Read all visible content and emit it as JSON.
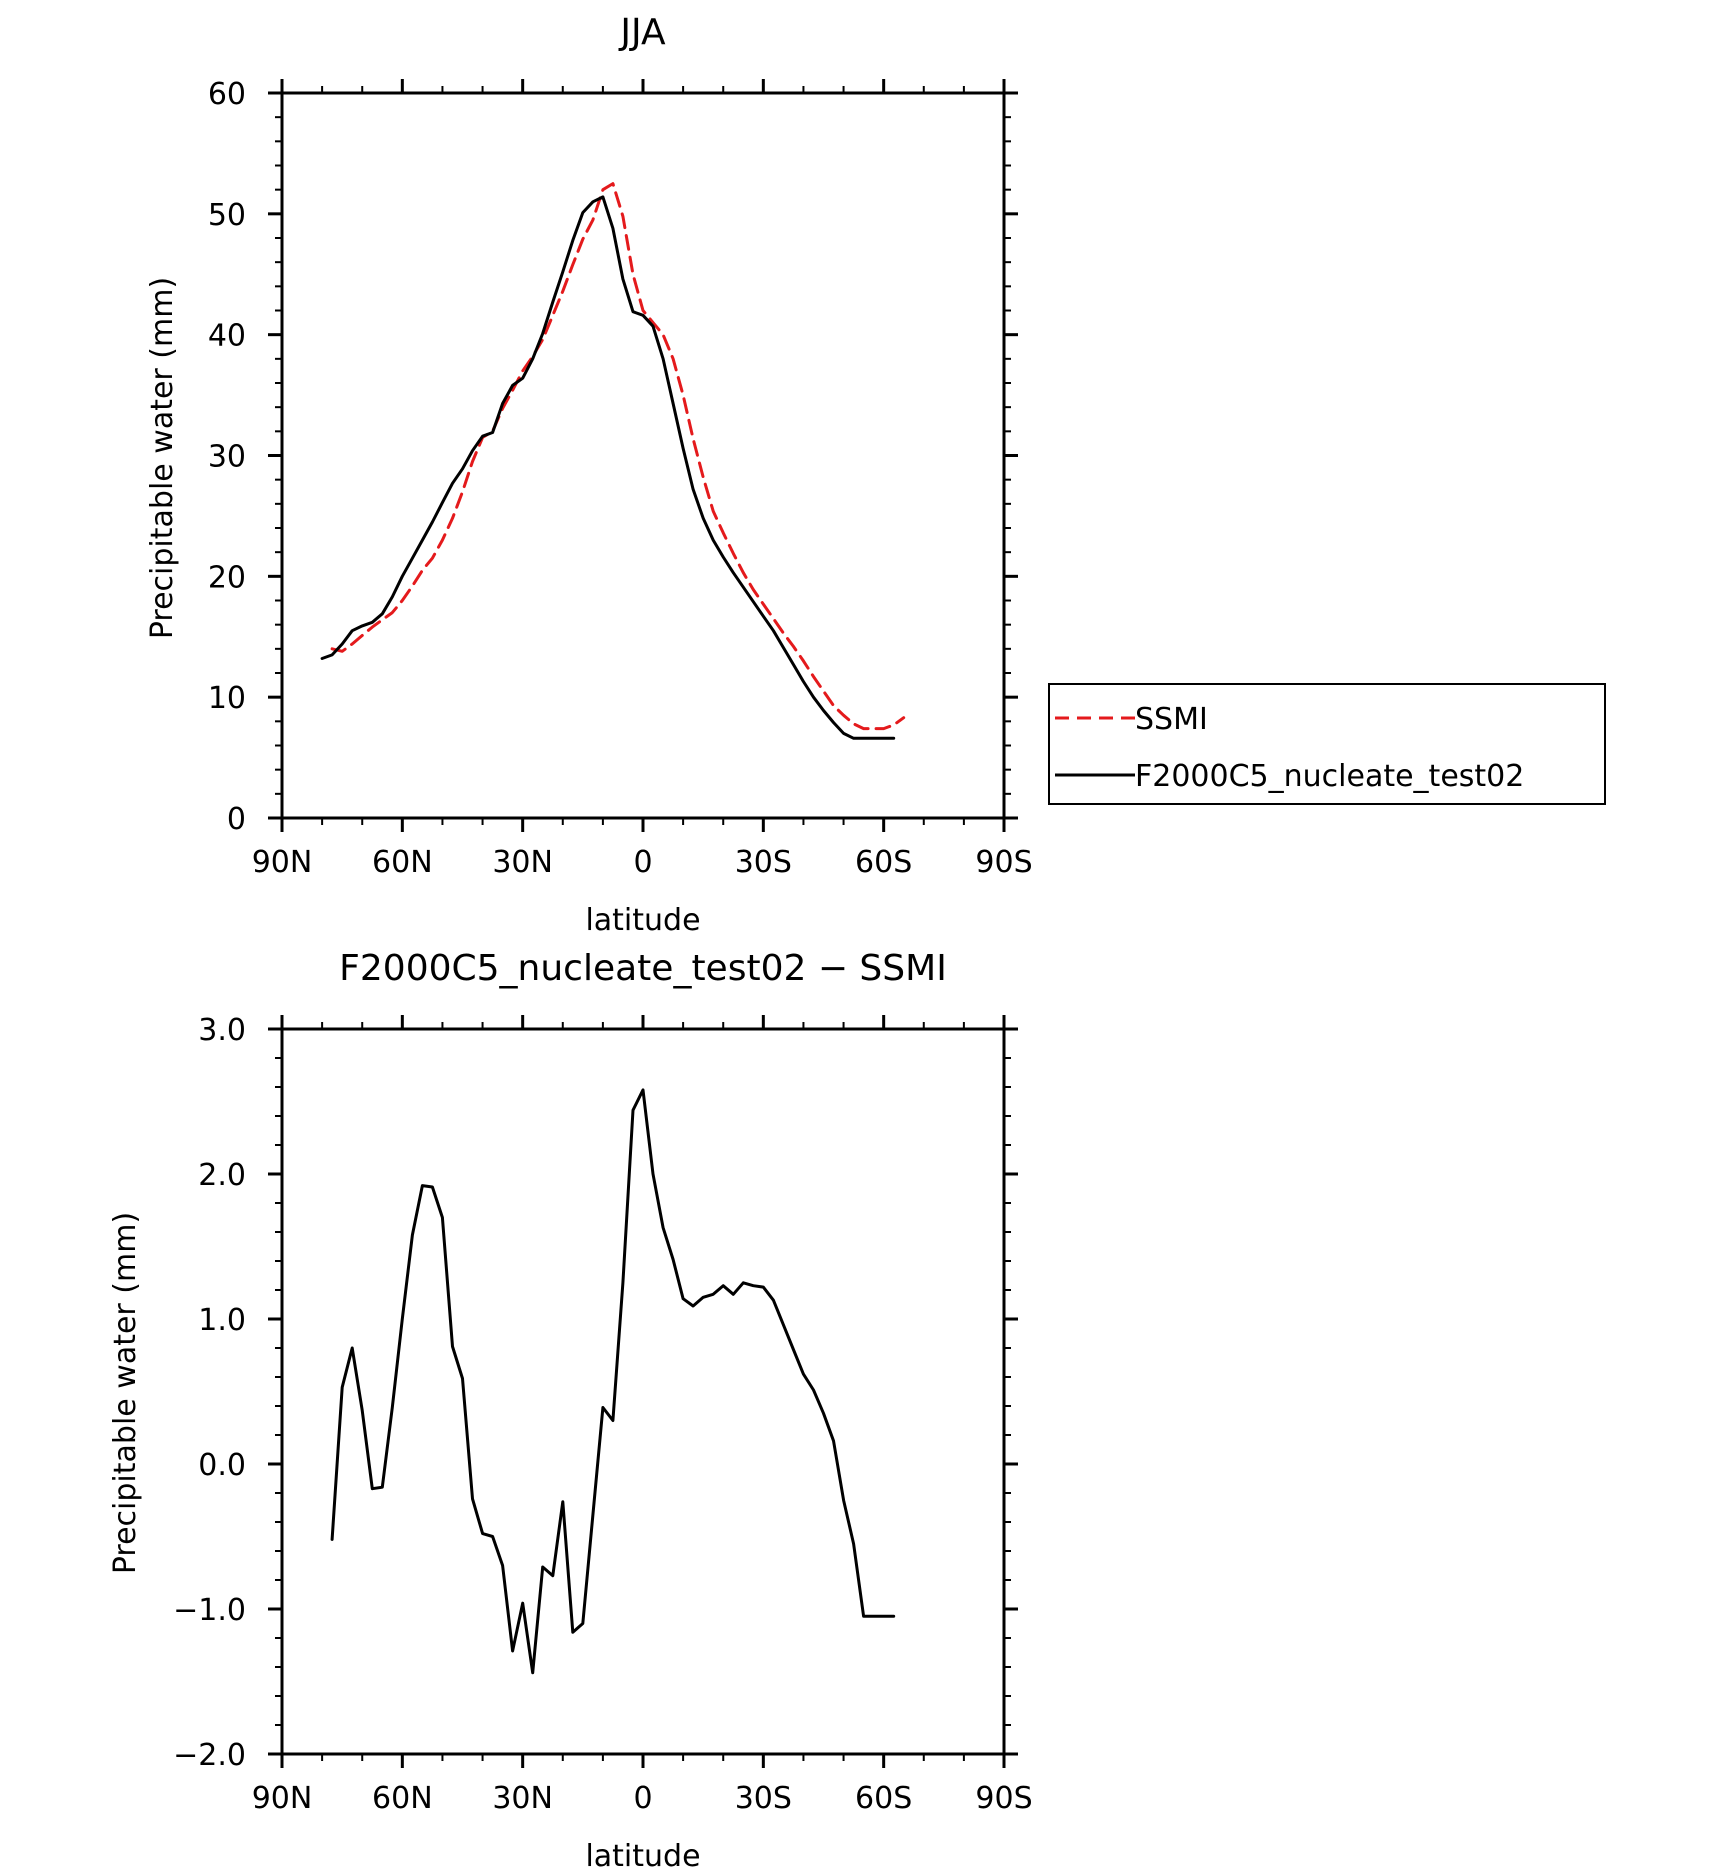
{
  "chart_data": [
    {
      "type": "line",
      "title": "JJA",
      "xlabel": "latitude",
      "ylabel": "Precipitable water (mm)",
      "xlim": [
        90,
        -90
      ],
      "ylim": [
        0,
        60
      ],
      "xticks": [
        90,
        60,
        30,
        0,
        -30,
        -60,
        -90
      ],
      "xtick_labels": [
        "90N",
        "60N",
        "30N",
        "0",
        "30S",
        "60S",
        "90S"
      ],
      "yticks": [
        0,
        10,
        20,
        30,
        40,
        50,
        60
      ],
      "ytick_labels": [
        "0",
        "10",
        "20",
        "30",
        "40",
        "50",
        "60"
      ],
      "y_minor_step": 2,
      "x_minor_step": 10,
      "grid": false,
      "legend": {
        "placement": "outside-right"
      },
      "series": [
        {
          "name": "SSMI",
          "color": "#e41a1c",
          "dash": "dashed",
          "x": [
            77.5,
            75,
            72.5,
            70,
            67.5,
            65,
            62.5,
            60,
            57.5,
            55,
            52.5,
            50,
            47.5,
            45,
            42.5,
            40,
            37.5,
            35,
            32.5,
            30,
            27.5,
            25,
            22.5,
            20,
            17.5,
            15,
            12.5,
            10,
            7.5,
            5,
            2.5,
            0,
            -2.5,
            -5,
            -7.5,
            -10,
            -12.5,
            -15,
            -17.5,
            -20,
            -22.5,
            -25,
            -27.5,
            -30,
            -32.5,
            -35,
            -37.5,
            -40,
            -42.5,
            -45,
            -47.5,
            -50,
            -52.5,
            -55,
            -57.5,
            -60,
            -62.5,
            -65
          ],
          "values": [
            14.0,
            13.8,
            14.4,
            15.1,
            15.8,
            16.4,
            17.0,
            18.0,
            19.2,
            20.5,
            21.5,
            23.0,
            24.8,
            27.0,
            29.5,
            31.5,
            32.0,
            33.9,
            35.4,
            37.0,
            38.2,
            39.6,
            41.6,
            43.6,
            45.8,
            47.9,
            49.5,
            52.0,
            52.5,
            49.8,
            45.0,
            42.0,
            41.0,
            40.0,
            38.0,
            35.0,
            31.4,
            28.2,
            25.4,
            23.6,
            21.9,
            20.3,
            18.9,
            17.7,
            16.5,
            15.3,
            14.2,
            13.0,
            11.7,
            10.5,
            9.3,
            8.5,
            7.8,
            7.4,
            7.4,
            7.4,
            7.7,
            8.3
          ]
        },
        {
          "name": "F2000C5_nucleate_test02",
          "color": "#000000",
          "dash": "solid",
          "x": [
            80,
            77.5,
            75,
            72.5,
            70,
            67.5,
            65,
            62.5,
            60,
            57.5,
            55,
            52.5,
            50,
            47.5,
            45,
            42.5,
            40,
            37.5,
            35,
            32.5,
            30,
            27.5,
            25,
            22.5,
            20,
            17.5,
            15,
            12.5,
            10,
            7.5,
            5,
            2.5,
            0,
            -2.5,
            -5,
            -7.5,
            -10,
            -12.5,
            -15,
            -17.5,
            -20,
            -22.5,
            -25,
            -27.5,
            -30,
            -32.5,
            -35,
            -37.5,
            -40,
            -42.5,
            -45,
            -47.5,
            -50,
            -52.5,
            -55,
            -57.5,
            -60,
            -62.5
          ],
          "values": [
            13.2,
            13.5,
            14.4,
            15.5,
            15.9,
            16.2,
            16.9,
            18.3,
            20.0,
            21.5,
            23.0,
            24.5,
            26.1,
            27.7,
            28.9,
            30.4,
            31.6,
            31.9,
            34.3,
            35.8,
            36.4,
            38.0,
            40.1,
            42.7,
            45.2,
            47.8,
            50.1,
            51.0,
            51.4,
            48.8,
            44.6,
            41.9,
            41.6,
            40.7,
            38.0,
            34.3,
            30.6,
            27.2,
            24.8,
            23.0,
            21.6,
            20.3,
            19.1,
            17.9,
            16.7,
            15.5,
            14.1,
            12.7,
            11.3,
            10.0,
            8.9,
            7.9,
            7.0,
            6.6,
            6.6,
            6.6,
            6.6,
            6.6
          ]
        }
      ]
    },
    {
      "type": "line",
      "title": "F2000C5_nucleate_test02 − SSMI",
      "xlabel": "latitude",
      "ylabel": "Precipitable water (mm)",
      "xlim": [
        90,
        -90
      ],
      "ylim": [
        -2.0,
        3.0
      ],
      "xticks": [
        90,
        60,
        30,
        0,
        -30,
        -60,
        -90
      ],
      "xtick_labels": [
        "90N",
        "60N",
        "30N",
        "0",
        "30S",
        "60S",
        "90S"
      ],
      "yticks": [
        -2,
        -1,
        0,
        1,
        2,
        3
      ],
      "ytick_labels": [
        "−2.0",
        "−1.0",
        "0.0",
        "1.0",
        "2.0",
        "3.0"
      ],
      "y_minor_step": 0.2,
      "x_minor_step": 10,
      "grid": false,
      "series": [
        {
          "color": "#000000",
          "dash": "solid",
          "x": [
            77.5,
            75,
            72.5,
            70,
            67.5,
            65,
            62.5,
            60,
            57.5,
            55,
            52.5,
            50,
            47.5,
            45,
            42.5,
            40,
            37.5,
            35,
            32.5,
            30,
            27.5,
            25,
            22.5,
            20,
            17.5,
            15,
            12.5,
            10,
            7.5,
            5,
            2.5,
            0,
            -2.5,
            -5,
            -7.5,
            -10,
            -12.5,
            -15,
            -17.5,
            -20,
            -22.5,
            -25,
            -27.5,
            -30,
            -32.5,
            -35,
            -37.5,
            -40,
            -42.5,
            -45,
            -47.5,
            -50,
            -52.5,
            -55,
            -57.5,
            -60,
            -62.5
          ],
          "values": [
            -0.52,
            0.53,
            0.8,
            0.37,
            -0.17,
            -0.16,
            0.39,
            1.0,
            1.58,
            1.92,
            1.91,
            1.7,
            0.81,
            0.59,
            -0.24,
            -0.48,
            -0.5,
            -0.7,
            -1.29,
            -0.96,
            -1.44,
            -0.71,
            -0.77,
            -0.26,
            -1.16,
            -1.1,
            -0.35,
            0.39,
            0.3,
            1.25,
            2.44,
            2.58,
            2.0,
            1.63,
            1.41,
            1.14,
            1.09,
            1.15,
            1.17,
            1.23,
            1.17,
            1.25,
            1.23,
            1.22,
            1.13,
            0.96,
            0.79,
            0.62,
            0.51,
            0.35,
            0.16,
            -0.25,
            -0.55,
            -1.05,
            -1.05,
            -1.05,
            -1.05
          ]
        }
      ]
    }
  ]
}
